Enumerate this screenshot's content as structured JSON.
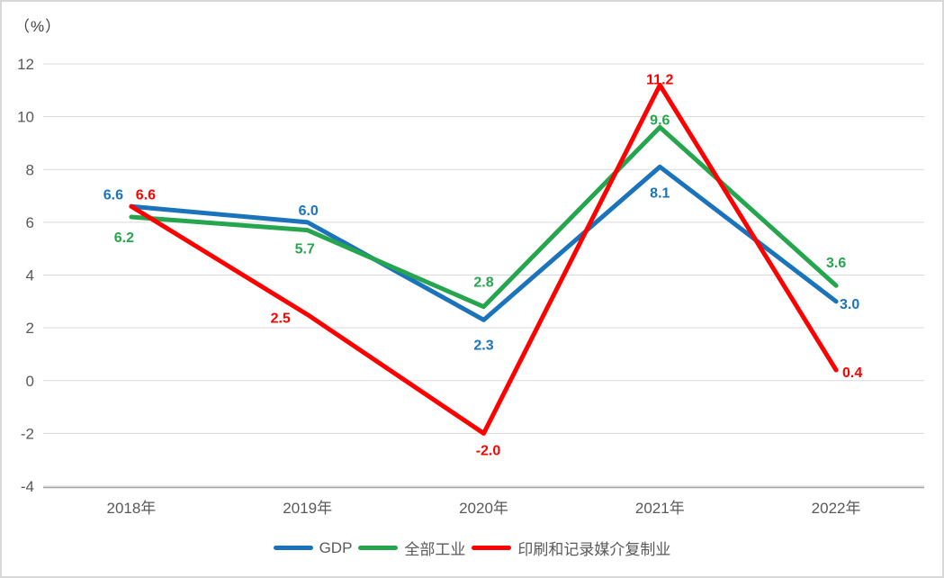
{
  "chart_data": {
    "type": "line",
    "title": "",
    "unit_label": "（%）",
    "categories": [
      "2018年",
      "2019年",
      "2020年",
      "2021年",
      "2022年"
    ],
    "series": [
      {
        "name": "GDP",
        "color": "#1B74BB",
        "values": [
          6.6,
          6.0,
          2.3,
          8.1,
          3.0
        ]
      },
      {
        "name": "全部工业",
        "color": "#25A64E",
        "values": [
          6.2,
          5.7,
          2.8,
          9.6,
          3.6
        ]
      },
      {
        "name": "印刷和记录媒介复制业",
        "color": "#FE0000",
        "values": [
          6.6,
          2.5,
          -2.0,
          11.2,
          0.4
        ]
      }
    ],
    "yticks": [
      12,
      10,
      8,
      6,
      4,
      2,
      0,
      -2,
      -4
    ],
    "ylim": [
      -4,
      12
    ],
    "grid": true,
    "legend_position": "bottom",
    "data_labels": true
  },
  "colors": {
    "grid": "#D9D9D9",
    "axis": "#A6A6A6",
    "tick_text": "#595959",
    "unit_text": "#404040",
    "frame_border": "#D8D8D8"
  }
}
